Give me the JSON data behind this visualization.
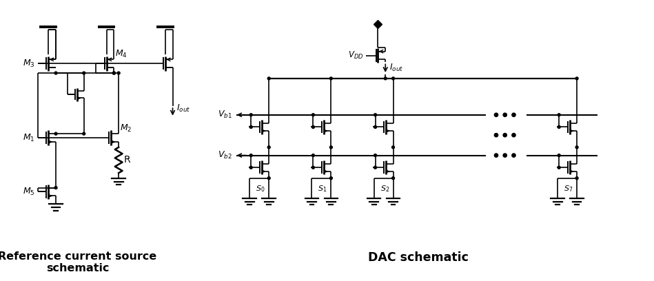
{
  "title_left": "Reference current source\nschematic",
  "title_right": "DAC schematic",
  "bg_color": "#ffffff",
  "figsize": [
    9.49,
    4.08
  ],
  "dpi": 100
}
